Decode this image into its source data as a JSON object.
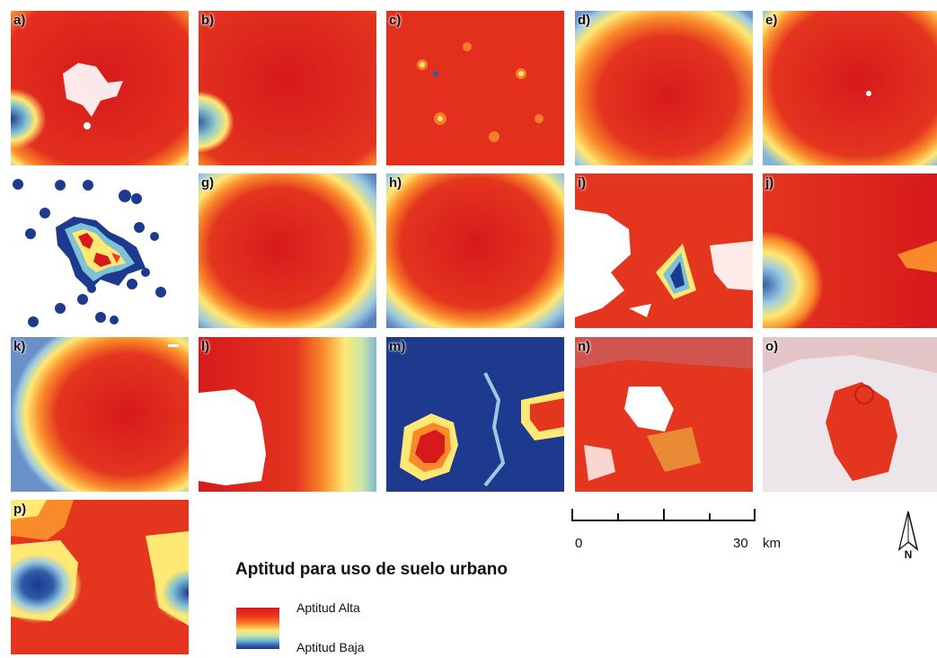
{
  "panels": [
    {
      "label": "a)"
    },
    {
      "label": "b)"
    },
    {
      "label": "c)"
    },
    {
      "label": "d)"
    },
    {
      "label": "e)"
    },
    {
      "label": ""
    },
    {
      "label": "g)"
    },
    {
      "label": "h)"
    },
    {
      "label": "i)"
    },
    {
      "label": "j)"
    },
    {
      "label": "k)"
    },
    {
      "label": "l)"
    },
    {
      "label": "m)"
    },
    {
      "label": "n)"
    },
    {
      "label": "o)"
    },
    {
      "label": "p)"
    }
  ],
  "scale": {
    "start": "0",
    "end": "30",
    "unit": "km"
  },
  "north": "N",
  "legend": {
    "title": "Aptitud para uso de suelo urbano",
    "high": "Aptitud Alta",
    "low": "Aptitud Baja"
  },
  "colors": {
    "high": "#d7191c",
    "mid": "#ffe873",
    "low": "#1d3a8f",
    "nodata": "#ffffff"
  }
}
